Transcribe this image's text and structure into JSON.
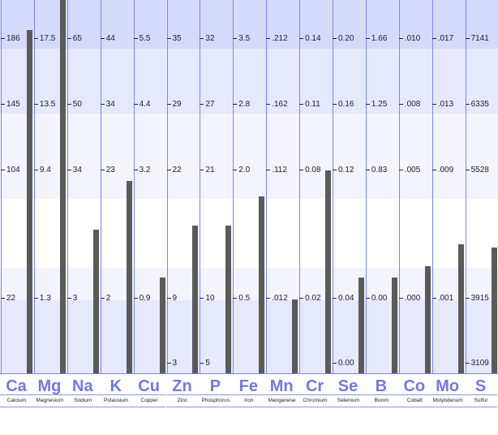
{
  "chart_data": {
    "type": "bar",
    "categories": [
      "Ca",
      "Mg",
      "Na",
      "K",
      "Cu",
      "Zn",
      "P",
      "Fe",
      "Mn",
      "Cr",
      "Se",
      "B",
      "Co",
      "Mo",
      "S"
    ],
    "names": [
      "Calcium",
      "Magnesium",
      "Sodium",
      "Potassium",
      "Copper",
      "Zinc",
      "Phosphorus",
      "Iron",
      "Manganese",
      "Chromium",
      "Selenium",
      "Boron",
      "Cobalt",
      "Molybdenum",
      "Sulfur"
    ],
    "tick_labels": [
      [
        "186",
        "145",
        "104",
        "22"
      ],
      [
        "17.5",
        "13.5",
        "9.4",
        "1.3"
      ],
      [
        "65",
        "50",
        "34",
        "3"
      ],
      [
        "44",
        "34",
        "23",
        "2"
      ],
      [
        "5.5",
        "4.4",
        "3.2",
        "0.9"
      ],
      [
        "35",
        "29",
        "22",
        "9",
        "3"
      ],
      [
        "32",
        "27",
        "21",
        "10",
        "5"
      ],
      [
        "3.5",
        "2.8",
        "2.0",
        "0.5"
      ],
      [
        ".212",
        ".162",
        ".112",
        ".012"
      ],
      [
        "0.14",
        "0.11",
        "0.08",
        "0.02"
      ],
      [
        "0.20",
        "0.16",
        "0.12",
        "0.04",
        "0.00"
      ],
      [
        "1.66",
        "1.25",
        "0.83",
        "0.00"
      ],
      [
        ".010",
        ".008",
        ".005",
        ".000"
      ],
      [
        ".017",
        ".013",
        ".009",
        ".001"
      ],
      [
        "7141",
        "6335",
        "5528",
        "3915",
        "3109"
      ]
    ],
    "level_fraction": [
      0.93,
      1.01,
      0.39,
      0.52,
      0.26,
      0.4,
      0.4,
      0.48,
      0.2,
      0.55,
      0.26,
      0.26,
      0.29,
      0.35,
      0.34
    ],
    "colors": {
      "bar": "#5a5a5a",
      "symbol": "#6f79e4",
      "grid_line": "#7b86e8",
      "band_dark": "#d6dafa",
      "band_mid": "#e6e9fc",
      "band_light": "#f3f4fd"
    }
  }
}
